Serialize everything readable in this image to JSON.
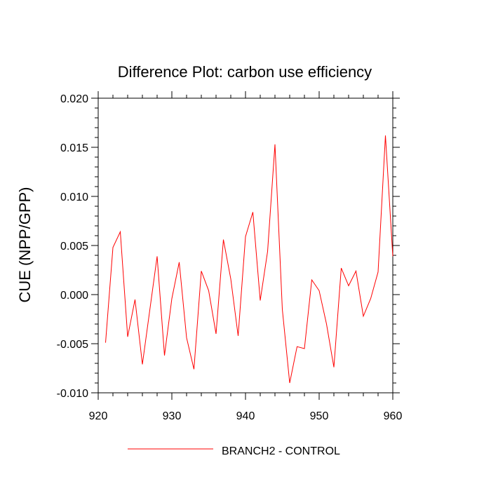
{
  "chart_data": {
    "type": "line",
    "title": "Difference Plot: carbon use efficiency",
    "xlabel": "",
    "ylabel": "CUE  (NPP/GPP)",
    "xlim": [
      920,
      960
    ],
    "ylim": [
      -0.01,
      0.02
    ],
    "x_ticks": [
      920,
      930,
      940,
      950,
      960
    ],
    "x_tick_labels": [
      "920",
      "930",
      "940",
      "950",
      "960"
    ],
    "y_ticks": [
      -0.01,
      -0.005,
      0.0,
      0.005,
      0.01,
      0.015,
      0.02
    ],
    "y_tick_labels": [
      "-0.010",
      "-0.005",
      "0.000",
      "0.005",
      "0.010",
      "0.015",
      "0.020"
    ],
    "legend_position": "bottom-center",
    "series": [
      {
        "name": "BRANCH2 - CONTROL",
        "color": "#ff0000",
        "x": [
          921,
          922,
          923,
          924,
          925,
          926,
          927,
          928,
          929,
          930,
          931,
          932,
          933,
          934,
          935,
          936,
          937,
          938,
          939,
          940,
          941,
          942,
          943,
          944,
          945,
          946,
          947,
          948,
          949,
          950,
          951,
          952,
          953,
          954,
          955,
          956,
          957,
          958,
          959,
          960
        ],
        "values": [
          -0.0049,
          0.0048,
          0.0064,
          -0.0043,
          -0.0005,
          -0.0071,
          -0.0016,
          0.0039,
          -0.0062,
          -0.0004,
          0.0033,
          -0.0044,
          -0.0076,
          0.0024,
          0.0004,
          -0.004,
          0.0056,
          0.0016,
          -0.0042,
          0.0059,
          0.0084,
          -0.0006,
          0.0044,
          0.0153,
          -0.0015,
          -0.009,
          -0.0053,
          -0.0055,
          0.0015,
          0.0004,
          -0.003,
          -0.0074,
          0.0027,
          0.0009,
          0.0024,
          -0.0022,
          -0.0004,
          0.0023,
          0.0162,
          0.0039
        ]
      }
    ]
  }
}
